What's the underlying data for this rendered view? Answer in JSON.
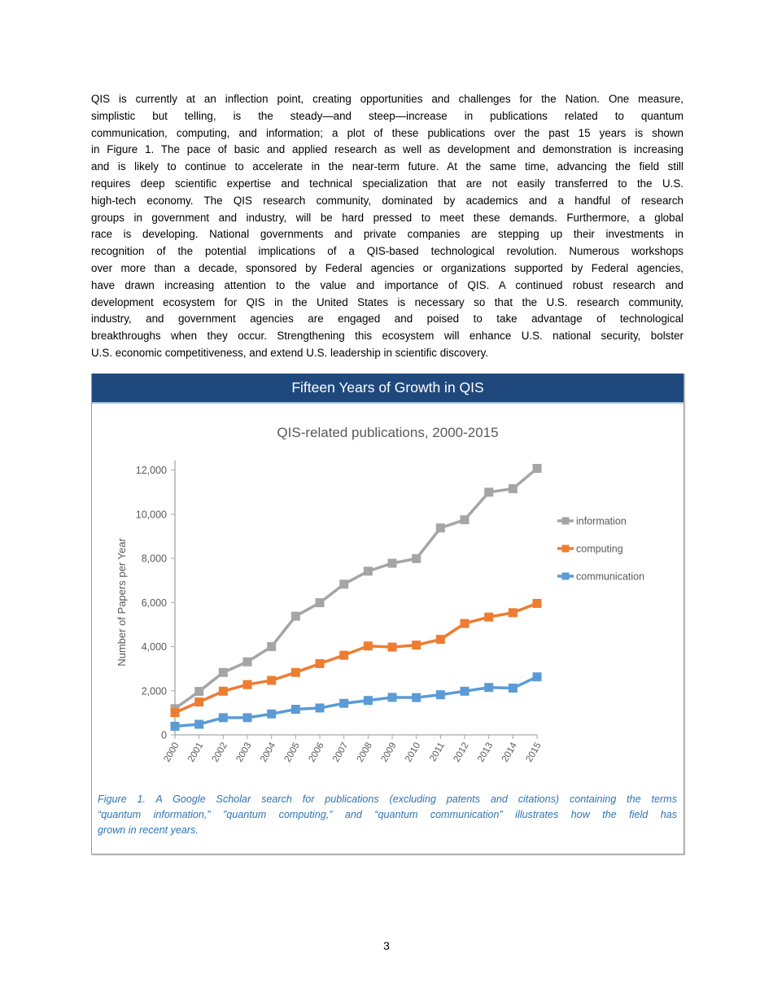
{
  "paragraph_lines": [
    "QIS is currently at an inflection point, creating opportunities and challenges for the Nation. One measure,",
    "simplistic but telling, is the steady—and steep—increase in publications related to quantum",
    "communication, computing, and information; a plot of these publications over the past 15 years is shown",
    "in Figure 1. The pace of basic and applied research as well as development and demonstration is increasing",
    "and is likely to continue to accelerate in the near-term future. At the same time, advancing the field still",
    "requires deep scientific expertise and technical specialization that are not easily transferred to the U.S.",
    "high-tech economy. The QIS research community, dominated by academics and a handful of research",
    "groups in government and industry, will be hard pressed to meet these demands. Furthermore, a global",
    "race is developing. National governments and private companies are stepping up their investments in",
    "recognition of the potential implications of a QIS-based technological revolution. Numerous workshops",
    "over more than a decade, sponsored by Federal agencies or organizations supported by Federal agencies,",
    "have drawn increasing attention to the value and importance of QIS. A continued robust research and",
    "development ecosystem for QIS in the United States is necessary so that the U.S. research community,",
    "industry, and government agencies are engaged and poised to take advantage of technological",
    "breakthroughs when they occur. Strengthening this ecosystem will enhance U.S. national security, bolster",
    "U.S. economic competitiveness, and extend U.S. leadership in scientific discovery."
  ],
  "figure": {
    "header": "Fifteen Years of Growth in QIS",
    "header_color": "#1F497D",
    "caption_lines": [
      "Figure 1. A Google Scholar search for publications (excluding patents and citations) containing the terms",
      "“quantum information,” ”quantum computing,” and “quantum communication” illustrates how the field has",
      "grown in recent years."
    ]
  },
  "chart_data": {
    "type": "line",
    "title": "QIS-related publications, 2000-2015",
    "xlabel": "",
    "ylabel": "Number of Papers per Year",
    "ylim": [
      0,
      12000
    ],
    "yticks": [
      "0",
      "2,000",
      "4,000",
      "6,000",
      "8,000",
      "10,000",
      "12,000"
    ],
    "ytick_values": [
      0,
      2000,
      4000,
      6000,
      8000,
      10000,
      12000
    ],
    "categories": [
      "2000",
      "2001",
      "2002",
      "2003",
      "2004",
      "2005",
      "2006",
      "2007",
      "2008",
      "2009",
      "2010",
      "2011",
      "2012",
      "2013",
      "2014",
      "2015"
    ],
    "grid": false,
    "legend_position": "right",
    "marker": "square",
    "series": [
      {
        "name": "information",
        "color": "#A5A5A5",
        "values": [
          1190,
          1970,
          2830,
          3310,
          4000,
          5380,
          5990,
          6830,
          7420,
          7780,
          7990,
          9380,
          9750,
          11000,
          11160,
          12080
        ]
      },
      {
        "name": "computing",
        "color": "#ED7D31",
        "values": [
          1010,
          1490,
          1980,
          2280,
          2470,
          2830,
          3230,
          3610,
          4030,
          3980,
          4070,
          4330,
          5050,
          5340,
          5540,
          5960
        ]
      },
      {
        "name": "communication",
        "color": "#5B9BD5",
        "values": [
          390,
          480,
          780,
          780,
          950,
          1160,
          1220,
          1430,
          1560,
          1700,
          1690,
          1820,
          1980,
          2150,
          2120,
          2630
        ]
      }
    ]
  },
  "page_number": "3"
}
